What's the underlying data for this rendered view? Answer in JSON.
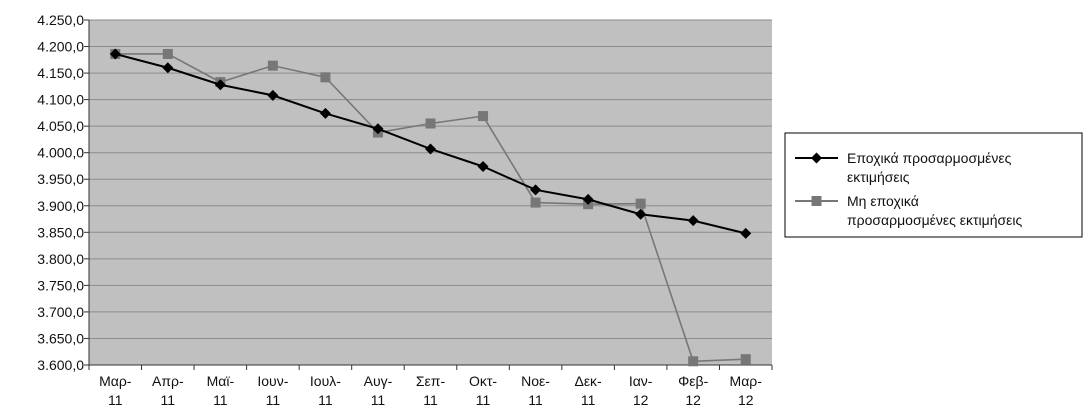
{
  "chart_data": {
    "type": "line",
    "title": "",
    "xlabel": "",
    "ylabel": "",
    "ylim": [
      3600,
      4250
    ],
    "ytick_values": [
      3600,
      3650,
      3700,
      3750,
      3800,
      3850,
      3900,
      3950,
      4000,
      4050,
      4100,
      4150,
      4200,
      4250
    ],
    "ytick_labels": [
      "3.600,0",
      "3.650,0",
      "3.700,0",
      "3.750,0",
      "3.800,0",
      "3.850,0",
      "3.900,0",
      "3.950,0",
      "4.000,0",
      "4.050,0",
      "4.100,0",
      "4.150,0",
      "4.200,0",
      "4.250,0"
    ],
    "categories": [
      [
        "Μαρ-",
        "11"
      ],
      [
        "Απρ-",
        "11"
      ],
      [
        "Μαϊ-",
        "11"
      ],
      [
        "Ιουν-",
        "11"
      ],
      [
        "Ιουλ-",
        "11"
      ],
      [
        "Αυγ-",
        "11"
      ],
      [
        "Σεπ-",
        "11"
      ],
      [
        "Οκτ-",
        "11"
      ],
      [
        "Νοε-",
        "11"
      ],
      [
        "Δεκ-",
        "11"
      ],
      [
        "Ιαν-",
        "12"
      ],
      [
        "Φεβ-",
        "12"
      ],
      [
        "Μαρ-",
        "12"
      ]
    ],
    "grid": true,
    "legend_position": "right",
    "series": [
      {
        "name": "Εποχικά προσαρμοσμένες εκτιμήσεις",
        "legend_lines": [
          "Εποχικά προσαρμοσμένες",
          "εκτιμήσεις"
        ],
        "color": "#000000",
        "marker": "diamond",
        "values": [
          4186,
          4160,
          4128,
          4108,
          4074,
          4045,
          4007,
          3974,
          3930,
          3912,
          3884,
          3872,
          3848
        ]
      },
      {
        "name": "Μη εποχικά προσαρμοσμένες εκτιμήσεις",
        "legend_lines": [
          "Μη εποχικά",
          "προσαρμοσμένες εκτιμήσεις"
        ],
        "color": "#777777",
        "marker": "square",
        "values": [
          4186,
          4186,
          4133,
          4164,
          4142,
          4038,
          4055,
          4069,
          3906,
          3903,
          3904,
          3607,
          3611
        ]
      }
    ],
    "colors": {
      "plot_background": "#c0c0c0",
      "gridline": "#8c8c8c"
    }
  }
}
